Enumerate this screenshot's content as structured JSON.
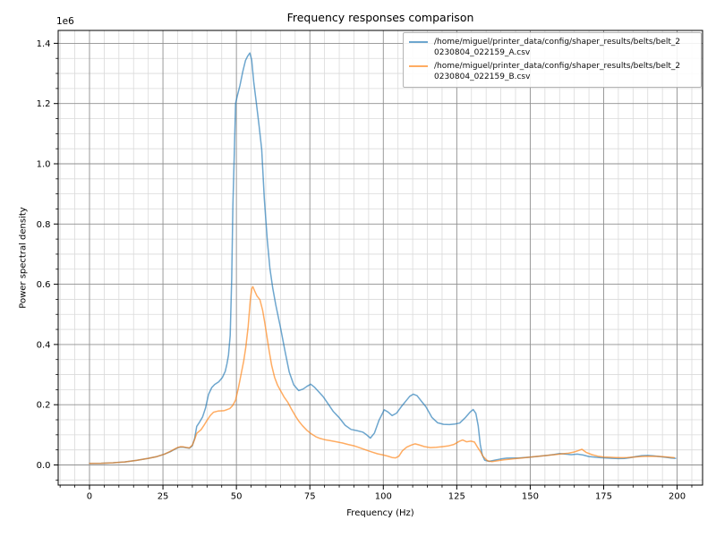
{
  "chart_data": {
    "type": "line",
    "title": "Frequency responses comparison",
    "xlabel": "Frequency (Hz)",
    "ylabel": "Power spectral density",
    "y_offset_label": "1e6",
    "grid": {
      "major_color": "#8f8f8f",
      "minor_color": "#dadada",
      "on": true
    },
    "xlim": [
      -10.66,
      208.66
    ],
    "ylim": [
      -66900,
      1442800
    ],
    "x_ticks": [
      0,
      25,
      50,
      75,
      100,
      125,
      150,
      175,
      200
    ],
    "x_tick_labels": [
      "0",
      "25",
      "50",
      "75",
      "100",
      "125",
      "150",
      "175",
      "200"
    ],
    "x_minor_step": 5,
    "y_ticks": [
      0,
      200000,
      400000,
      600000,
      800000,
      1000000,
      1200000,
      1400000
    ],
    "y_tick_labels": [
      "0.0",
      "0.2",
      "0.4",
      "0.6",
      "0.8",
      "1.0",
      "1.2",
      "1.4"
    ],
    "y_minor_step": 50000,
    "legend": {
      "position": "upper right",
      "entries": [
        {
          "color": "#1f77b4",
          "label_lines": [
            "/home/miguel/printer_data/config/shaper_results/belts/belt_2",
            "0230804_022159_A.csv"
          ]
        },
        {
          "color": "#ff7f0e",
          "label_lines": [
            "/home/miguel/printer_data/config/shaper_results/belts/belt_2",
            "0230804_022159_B.csv"
          ]
        }
      ]
    },
    "series": [
      {
        "name": "/home/miguel/printer_data/config/shaper_results/belts/belt_20230804_022159_A.csv",
        "color": "#1f77b4",
        "opacity": 0.65,
        "points": [
          [
            0,
            5000
          ],
          [
            4,
            5500
          ],
          [
            8,
            7000
          ],
          [
            12,
            10000
          ],
          [
            16,
            15000
          ],
          [
            20,
            22000
          ],
          [
            23,
            28000
          ],
          [
            25.5,
            36000
          ],
          [
            27.5,
            44000
          ],
          [
            29,
            52000
          ],
          [
            30,
            57000
          ],
          [
            31,
            59500
          ],
          [
            32,
            59000
          ],
          [
            33,
            57000
          ],
          [
            34,
            55500
          ],
          [
            35,
            64000
          ],
          [
            35.8,
            88000
          ],
          [
            36.5,
            128000
          ],
          [
            37.5,
            143000
          ],
          [
            38.5,
            160000
          ],
          [
            39.5,
            190000
          ],
          [
            40.5,
            234000
          ],
          [
            41.6,
            257000
          ],
          [
            42.6,
            267000
          ],
          [
            44,
            276000
          ],
          [
            45.2,
            290000
          ],
          [
            46.2,
            311000
          ],
          [
            46.8,
            336000
          ],
          [
            47.3,
            365000
          ],
          [
            47.9,
            430000
          ],
          [
            48.4,
            620000
          ],
          [
            48.8,
            860000
          ],
          [
            49.3,
            1035000
          ],
          [
            49.7,
            1200000
          ],
          [
            50.3,
            1225000
          ],
          [
            51.2,
            1260000
          ],
          [
            52.2,
            1308000
          ],
          [
            53.1,
            1343000
          ],
          [
            53.8,
            1357000
          ],
          [
            54.6,
            1368000
          ],
          [
            55.2,
            1345000
          ],
          [
            55.9,
            1272000
          ],
          [
            56.8,
            1200000
          ],
          [
            57.7,
            1128000
          ],
          [
            58.6,
            1048000
          ],
          [
            59.5,
            885000
          ],
          [
            60.5,
            748000
          ],
          [
            61.4,
            652000
          ],
          [
            62.4,
            586000
          ],
          [
            63.4,
            532000
          ],
          [
            65,
            456000
          ],
          [
            66.5,
            380000
          ],
          [
            68,
            308000
          ],
          [
            69.5,
            266000
          ],
          [
            71.2,
            247000
          ],
          [
            72.7,
            252000
          ],
          [
            74,
            261000
          ],
          [
            75.3,
            268000
          ],
          [
            76.6,
            258000
          ],
          [
            78,
            243000
          ],
          [
            79.5,
            227000
          ],
          [
            81,
            206000
          ],
          [
            83,
            177000
          ],
          [
            85,
            157000
          ],
          [
            87,
            132000
          ],
          [
            89,
            118000
          ],
          [
            91,
            114000
          ],
          [
            93,
            109000
          ],
          [
            94.3,
            100000
          ],
          [
            95.6,
            89000
          ],
          [
            97,
            106000
          ],
          [
            98.5,
            148000
          ],
          [
            100.3,
            183000
          ],
          [
            101.6,
            176000
          ],
          [
            103,
            164000
          ],
          [
            104.5,
            172000
          ],
          [
            106,
            192000
          ],
          [
            107.5,
            210000
          ],
          [
            109,
            228000
          ],
          [
            110.2,
            235000
          ],
          [
            111.5,
            230000
          ],
          [
            113,
            211000
          ],
          [
            114.5,
            193000
          ],
          [
            116.5,
            158000
          ],
          [
            118.5,
            140000
          ],
          [
            120.5,
            135000
          ],
          [
            122.5,
            134000
          ],
          [
            124.5,
            136000
          ],
          [
            126,
            139000
          ],
          [
            128,
            158000
          ],
          [
            129.5,
            175000
          ],
          [
            130.6,
            184000
          ],
          [
            131.5,
            171000
          ],
          [
            132.3,
            130000
          ],
          [
            133,
            68000
          ],
          [
            133.7,
            33000
          ],
          [
            134.5,
            16000
          ],
          [
            136,
            12000
          ],
          [
            138,
            16000
          ],
          [
            140,
            20000
          ],
          [
            142,
            22500
          ],
          [
            144,
            23000
          ],
          [
            146,
            23000
          ],
          [
            148,
            24500
          ],
          [
            150,
            26000
          ],
          [
            152,
            28000
          ],
          [
            154,
            30000
          ],
          [
            156,
            32000
          ],
          [
            158,
            34500
          ],
          [
            160,
            38000
          ],
          [
            162,
            36000
          ],
          [
            164,
            34000
          ],
          [
            166,
            36000
          ],
          [
            168,
            33000
          ],
          [
            170,
            28000
          ],
          [
            172,
            26000
          ],
          [
            174,
            24000
          ],
          [
            176,
            23000
          ],
          [
            178,
            22000
          ],
          [
            180,
            21000
          ],
          [
            182,
            21500
          ],
          [
            184,
            24000
          ],
          [
            186,
            28000
          ],
          [
            188,
            31000
          ],
          [
            190,
            31500
          ],
          [
            192,
            30000
          ],
          [
            194,
            28000
          ],
          [
            196,
            25500
          ],
          [
            198,
            23000
          ],
          [
            199.5,
            22000
          ]
        ]
      },
      {
        "name": "/home/miguel/printer_data/config/shaper_results/belts/belt_20230804_022159_B.csv",
        "color": "#ff7f0e",
        "opacity": 0.65,
        "points": [
          [
            0,
            5000
          ],
          [
            4,
            5500
          ],
          [
            8,
            7000
          ],
          [
            12,
            10000
          ],
          [
            16,
            15000
          ],
          [
            20,
            22000
          ],
          [
            23,
            28000
          ],
          [
            25.5,
            36000
          ],
          [
            27.5,
            45000
          ],
          [
            29,
            53000
          ],
          [
            30,
            58000
          ],
          [
            31,
            60500
          ],
          [
            32,
            60000
          ],
          [
            33,
            58000
          ],
          [
            34,
            56500
          ],
          [
            35,
            66000
          ],
          [
            35.8,
            85000
          ],
          [
            36.5,
            105000
          ],
          [
            38,
            117000
          ],
          [
            39,
            132000
          ],
          [
            40,
            148000
          ],
          [
            41.2,
            165000
          ],
          [
            42.2,
            175000
          ],
          [
            43.7,
            179000
          ],
          [
            45.7,
            180000
          ],
          [
            47.7,
            187000
          ],
          [
            48.7,
            197000
          ],
          [
            49.7,
            215000
          ],
          [
            50.7,
            256000
          ],
          [
            51.7,
            306000
          ],
          [
            52.5,
            345000
          ],
          [
            53.2,
            390000
          ],
          [
            54,
            460000
          ],
          [
            54.7,
            545000
          ],
          [
            55.2,
            585000
          ],
          [
            55.6,
            592000
          ],
          [
            56.2,
            578000
          ],
          [
            57,
            561000
          ],
          [
            58,
            549000
          ],
          [
            58.9,
            514000
          ],
          [
            59.6,
            475000
          ],
          [
            60.4,
            425000
          ],
          [
            61.2,
            376000
          ],
          [
            62,
            331000
          ],
          [
            63,
            291000
          ],
          [
            64,
            265000
          ],
          [
            65,
            247000
          ],
          [
            66.2,
            226000
          ],
          [
            67.5,
            208000
          ],
          [
            68.7,
            186000
          ],
          [
            70,
            164000
          ],
          [
            71.2,
            146000
          ],
          [
            72.5,
            130000
          ],
          [
            74,
            115000
          ],
          [
            75.5,
            103000
          ],
          [
            77,
            94000
          ],
          [
            78.5,
            88000
          ],
          [
            80,
            84000
          ],
          [
            82,
            80500
          ],
          [
            84,
            77000
          ],
          [
            86,
            73000
          ],
          [
            88,
            68000
          ],
          [
            90,
            63500
          ],
          [
            92,
            57000
          ],
          [
            94,
            50000
          ],
          [
            96,
            43500
          ],
          [
            98,
            37000
          ],
          [
            100,
            33000
          ],
          [
            101.5,
            29500
          ],
          [
            103,
            24500
          ],
          [
            104.2,
            23500
          ],
          [
            105.3,
            29000
          ],
          [
            106.5,
            47000
          ],
          [
            108,
            59000
          ],
          [
            109.5,
            66000
          ],
          [
            110.8,
            70000
          ],
          [
            112.2,
            66500
          ],
          [
            114,
            61000
          ],
          [
            116,
            57500
          ],
          [
            118,
            58500
          ],
          [
            120,
            60500
          ],
          [
            122,
            63000
          ],
          [
            124,
            68000
          ],
          [
            125.8,
            78000
          ],
          [
            127,
            83000
          ],
          [
            128.3,
            77000
          ],
          [
            129.8,
            79000
          ],
          [
            131,
            76000
          ],
          [
            132,
            60000
          ],
          [
            133,
            45000
          ],
          [
            134,
            28000
          ],
          [
            135.5,
            13500
          ],
          [
            137,
            11000
          ],
          [
            139,
            14000
          ],
          [
            141,
            17000
          ],
          [
            143,
            19000
          ],
          [
            145,
            21000
          ],
          [
            147,
            23000
          ],
          [
            149,
            25000
          ],
          [
            151,
            27000
          ],
          [
            153,
            29000
          ],
          [
            155,
            31000
          ],
          [
            157,
            33000
          ],
          [
            159,
            35000
          ],
          [
            161,
            37000
          ],
          [
            163,
            39000
          ],
          [
            165,
            43000
          ],
          [
            166.5,
            48000
          ],
          [
            167.6,
            52000
          ],
          [
            169,
            42000
          ],
          [
            171,
            34000
          ],
          [
            173,
            29000
          ],
          [
            175,
            26500
          ],
          [
            177,
            25500
          ],
          [
            179,
            24500
          ],
          [
            181,
            24000
          ],
          [
            183,
            24500
          ],
          [
            185,
            26000
          ],
          [
            187,
            27500
          ],
          [
            189,
            28500
          ],
          [
            191,
            29000
          ],
          [
            193,
            28500
          ],
          [
            195,
            27500
          ],
          [
            197,
            26000
          ],
          [
            199,
            24000
          ]
        ]
      }
    ]
  }
}
